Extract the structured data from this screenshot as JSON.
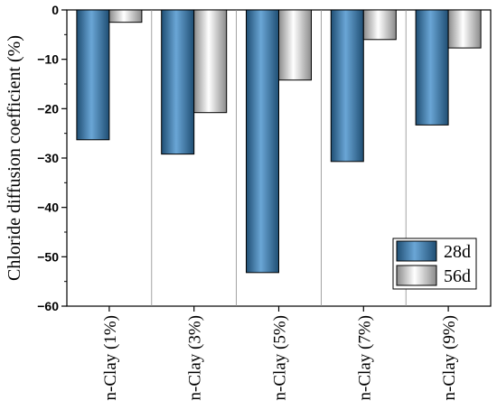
{
  "chart_data": {
    "type": "bar",
    "ylabel": "Chloride diffusion coefficient (%)",
    "xlabel": "",
    "categories": [
      "n-Clay (1%)",
      "n-Clay (3%)",
      "n-Clay (5%)",
      "n-Clay (7%)",
      "n-Clay (9%)"
    ],
    "series": [
      {
        "name": "28d",
        "values": [
          -26.3,
          -29.2,
          -53.2,
          -30.7,
          -23.3
        ],
        "color": "#3d7fb5"
      },
      {
        "name": "56d",
        "values": [
          -2.5,
          -20.8,
          -14.2,
          -6.0,
          -7.7
        ],
        "color": "#d9d9d9"
      }
    ],
    "ylim": [
      -60,
      0
    ],
    "yticks": [
      0,
      -10,
      -20,
      -30,
      -40,
      -50,
      -60
    ],
    "ytick_labels": [
      "0",
      "−10",
      "−20",
      "−30",
      "−40",
      "−50",
      "−60"
    ],
    "legend_position": "bottom-right",
    "category_separators": true,
    "grid": false
  }
}
